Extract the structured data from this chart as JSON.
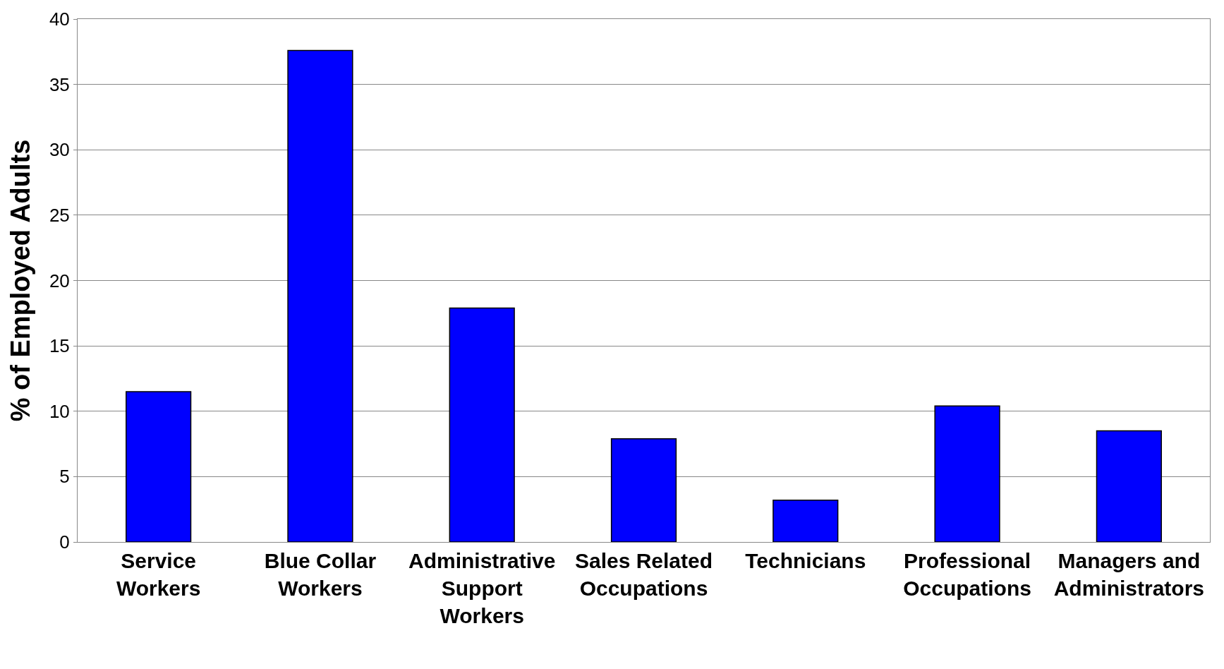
{
  "chart_data": {
    "type": "bar",
    "ylabel": "% of Employed Adults",
    "categories": [
      "Service Workers",
      "Blue Collar Workers",
      "Administrative Support Workers",
      "Sales Related Occupations",
      "Technicians",
      "Professional Occupations",
      "Managers and Administrators"
    ],
    "values": [
      11.5,
      37.6,
      17.9,
      7.9,
      3.2,
      10.4,
      8.5
    ],
    "color": "#0000ff",
    "ylim": [
      0,
      40
    ],
    "yticks": [
      0,
      5,
      10,
      15,
      20,
      25,
      30,
      35,
      40
    ],
    "grid": "y",
    "legend": false
  }
}
